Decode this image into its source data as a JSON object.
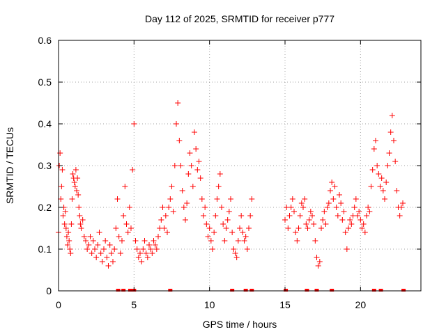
{
  "chart_data": {
    "type": "scatter",
    "title": "Day 112 of 2025, SRMTID for receiver p777",
    "xlabel": "GPS time / hours",
    "ylabel": "SRMTID / TECUs",
    "xlim": [
      0,
      24
    ],
    "ylim": [
      0,
      0.6
    ],
    "xticks": [
      0,
      5,
      10,
      15,
      20
    ],
    "xtick_labels": [
      "0",
      "5",
      "10",
      "15",
      "20"
    ],
    "yticks": [
      0,
      0.1,
      0.2,
      0.3,
      0.4,
      0.5,
      0.6
    ],
    "ytick_labels": [
      "0",
      "0.1",
      "0.2",
      "0.3",
      "0.4",
      "0.5",
      "0.6"
    ],
    "grid": true,
    "marker": "+",
    "series_color": "#ff0000",
    "grid_color": "#a0a0a0",
    "series": [
      {
        "name": "SRMTID",
        "x": [
          0.0,
          0.05,
          0.1,
          0.15,
          0.2,
          0.25,
          0.3,
          0.35,
          0.4,
          0.45,
          0.5,
          0.55,
          0.6,
          0.65,
          0.7,
          0.75,
          0.8,
          0.85,
          0.9,
          0.95,
          1.0,
          1.05,
          1.1,
          1.15,
          1.2,
          1.25,
          1.3,
          1.35,
          1.4,
          1.45,
          1.5,
          1.6,
          1.7,
          1.8,
          1.9,
          2.0,
          2.1,
          2.2,
          2.3,
          2.4,
          2.5,
          2.6,
          2.7,
          2.8,
          2.9,
          3.0,
          3.1,
          3.2,
          3.3,
          3.4,
          3.5,
          3.6,
          3.7,
          3.8,
          3.9,
          4.0,
          4.1,
          4.2,
          4.3,
          4.4,
          4.5,
          4.6,
          4.7,
          4.8,
          4.9,
          5.0,
          5.1,
          5.2,
          5.3,
          5.4,
          5.5,
          5.6,
          5.7,
          5.8,
          5.9,
          6.0,
          6.1,
          6.2,
          6.3,
          6.4,
          6.5,
          6.6,
          6.7,
          6.8,
          6.9,
          7.0,
          7.1,
          7.2,
          7.3,
          7.4,
          7.5,
          7.6,
          7.7,
          7.8,
          7.9,
          8.0,
          8.1,
          8.2,
          8.3,
          8.4,
          8.5,
          8.6,
          8.7,
          8.8,
          8.9,
          9.0,
          9.1,
          9.2,
          9.3,
          9.4,
          9.5,
          9.6,
          9.7,
          9.8,
          9.9,
          10.0,
          10.1,
          10.2,
          10.3,
          10.4,
          10.5,
          10.6,
          10.7,
          10.8,
          10.9,
          11.0,
          11.1,
          11.2,
          11.3,
          11.4,
          11.5,
          11.6,
          11.7,
          11.8,
          11.9,
          12.0,
          12.1,
          12.2,
          12.3,
          12.4,
          12.5,
          12.6,
          12.7,
          12.8,
          15.0,
          15.1,
          15.2,
          15.3,
          15.4,
          15.5,
          15.6,
          15.7,
          15.8,
          15.9,
          16.0,
          16.1,
          16.2,
          16.3,
          16.4,
          16.5,
          16.6,
          16.7,
          16.8,
          16.9,
          17.0,
          17.1,
          17.2,
          17.3,
          17.4,
          17.5,
          17.6,
          17.7,
          17.8,
          17.9,
          18.0,
          18.1,
          18.2,
          18.3,
          18.4,
          18.5,
          18.6,
          18.7,
          18.8,
          18.9,
          19.0,
          19.1,
          19.2,
          19.3,
          19.4,
          19.5,
          19.6,
          19.7,
          19.8,
          19.9,
          20.0,
          20.1,
          20.2,
          20.3,
          20.4,
          20.5,
          20.6,
          20.7,
          20.8,
          20.9,
          21.0,
          21.1,
          21.2,
          21.3,
          21.4,
          21.5,
          21.6,
          21.7,
          21.8,
          21.9,
          22.0,
          22.1,
          22.2,
          22.3,
          22.4,
          22.5,
          22.6,
          22.7,
          22.8
        ],
        "y": [
          0.14,
          0.3,
          0.33,
          0.22,
          0.25,
          0.29,
          0.18,
          0.2,
          0.16,
          0.19,
          0.15,
          0.13,
          0.11,
          0.14,
          0.12,
          0.1,
          0.09,
          0.16,
          0.22,
          0.28,
          0.27,
          0.26,
          0.25,
          0.29,
          0.24,
          0.27,
          0.23,
          0.2,
          0.18,
          0.16,
          0.15,
          0.17,
          0.13,
          0.12,
          0.1,
          0.11,
          0.13,
          0.09,
          0.12,
          0.1,
          0.08,
          0.11,
          0.14,
          0.09,
          0.07,
          0.1,
          0.12,
          0.08,
          0.06,
          0.11,
          0.09,
          0.07,
          0.1,
          0.15,
          0.22,
          0.13,
          0.09,
          0.12,
          0.18,
          0.25,
          0.16,
          0.14,
          0.2,
          0.15,
          0.29,
          0.4,
          0.12,
          0.1,
          0.08,
          0.09,
          0.07,
          0.1,
          0.12,
          0.09,
          0.08,
          0.11,
          0.1,
          0.09,
          0.12,
          0.11,
          0.1,
          0.13,
          0.15,
          0.17,
          0.2,
          0.15,
          0.18,
          0.14,
          0.2,
          0.22,
          0.25,
          0.19,
          0.3,
          0.4,
          0.45,
          0.36,
          0.3,
          0.24,
          0.2,
          0.17,
          0.21,
          0.28,
          0.33,
          0.3,
          0.25,
          0.38,
          0.34,
          0.29,
          0.31,
          0.27,
          0.22,
          0.18,
          0.2,
          0.16,
          0.13,
          0.15,
          0.12,
          0.1,
          0.14,
          0.18,
          0.22,
          0.25,
          0.28,
          0.2,
          0.16,
          0.12,
          0.15,
          0.17,
          0.19,
          0.22,
          0.14,
          0.1,
          0.09,
          0.08,
          0.12,
          0.15,
          0.18,
          0.14,
          0.12,
          0.13,
          0.1,
          0.15,
          0.18,
          0.22,
          0.17,
          0.2,
          0.15,
          0.18,
          0.2,
          0.22,
          0.19,
          0.14,
          0.12,
          0.15,
          0.18,
          0.21,
          0.2,
          0.22,
          0.16,
          0.15,
          0.17,
          0.19,
          0.18,
          0.16,
          0.12,
          0.08,
          0.06,
          0.07,
          0.15,
          0.17,
          0.19,
          0.16,
          0.2,
          0.21,
          0.24,
          0.26,
          0.22,
          0.25,
          0.2,
          0.18,
          0.23,
          0.21,
          0.17,
          0.19,
          0.14,
          0.1,
          0.15,
          0.17,
          0.16,
          0.18,
          0.2,
          0.22,
          0.18,
          0.19,
          0.17,
          0.15,
          0.16,
          0.14,
          0.18,
          0.2,
          0.19,
          0.25,
          0.29,
          0.34,
          0.36,
          0.3,
          0.28,
          0.25,
          0.27,
          0.24,
          0.22,
          0.26,
          0.3,
          0.33,
          0.38,
          0.42,
          0.36,
          0.31,
          0.24,
          0.2,
          0.18,
          0.2,
          0.21
        ]
      }
    ],
    "zero_markers_x": [
      3.95,
      4.3,
      4.75,
      4.85,
      5.0,
      7.4,
      11.5,
      12.4,
      12.8,
      15.05,
      16.45,
      17.1,
      18.1,
      20.9,
      21.35,
      22.85
    ]
  }
}
